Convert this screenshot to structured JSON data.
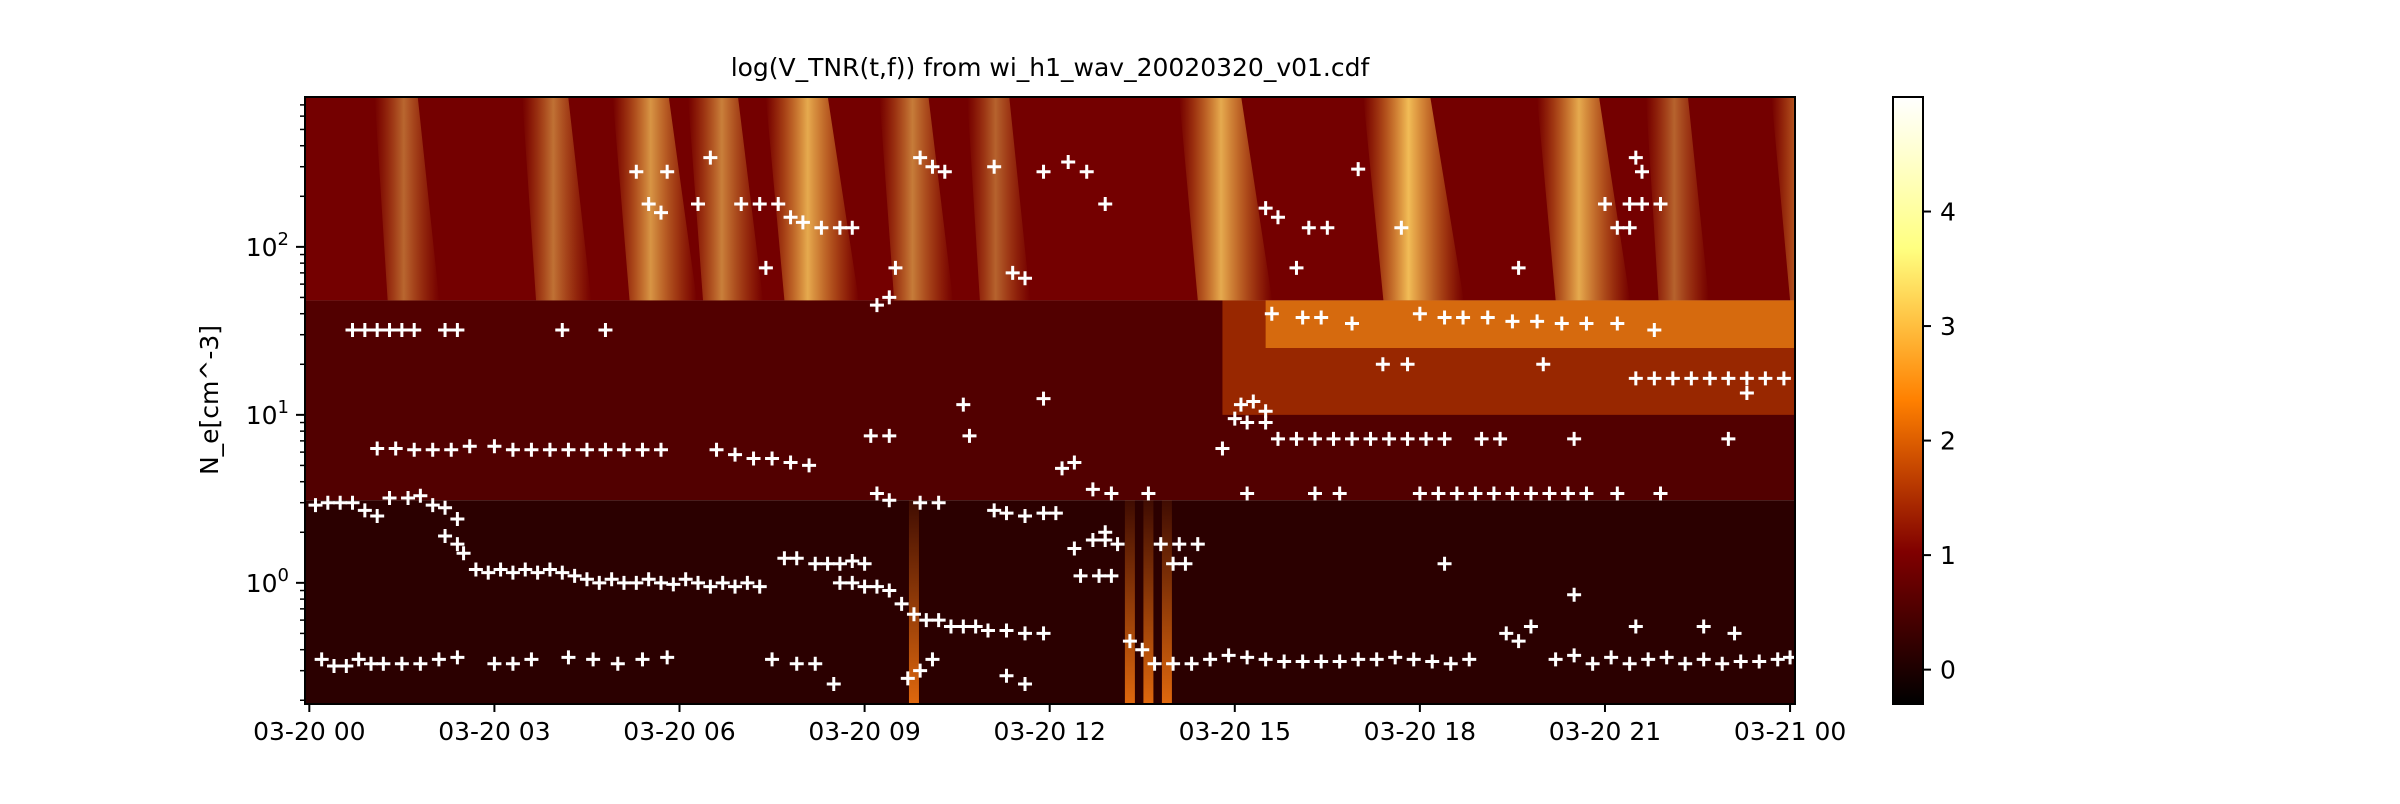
{
  "chart_data": {
    "type": "heatmap",
    "title": "log(V_TNR(t,f)) from wi_h1_wav_20020320_v01.cdf",
    "xlabel": "",
    "ylabel": "N_e[cm^-3]",
    "x_tick_labels": [
      "03-20 00",
      "03-20 03",
      "03-20 06",
      "03-20 09",
      "03-20 12",
      "03-20 15",
      "03-20 18",
      "03-20 21",
      "03-21 00"
    ],
    "x_ticks_hours": [
      0,
      3,
      6,
      9,
      12,
      15,
      18,
      21,
      24
    ],
    "xlim_hours": [
      -0.07,
      24.08
    ],
    "y_scale": "log",
    "ylim": [
      0.19,
      780
    ],
    "y_major_ticks": [
      1,
      10,
      100
    ],
    "y_tick_labels": [
      {
        "base": "10",
        "exp": "0"
      },
      {
        "base": "10",
        "exp": "1"
      },
      {
        "base": "10",
        "exp": "2"
      }
    ],
    "colorbar": {
      "range": [
        -0.3,
        5.0
      ],
      "ticks": [
        0,
        1,
        2,
        3,
        4
      ],
      "tick_labels": [
        "0",
        "1",
        "2",
        "3",
        "4"
      ],
      "colormap": "afmhot",
      "colors": [
        "#000000",
        "#800000",
        "#ff8000",
        "#ffff80",
        "#ffffff"
      ]
    },
    "band_boundaries": [
      3.1,
      48
    ],
    "bursts": [
      {
        "t": 1.2,
        "i": 1.5
      },
      {
        "t": 3.6,
        "i": 1.8
      },
      {
        "t": 5.1,
        "i": 2.8
      },
      {
        "t": 6.3,
        "i": 2.2
      },
      {
        "t": 7.6,
        "i": 3.4
      },
      {
        "t": 9.4,
        "i": 2.1
      },
      {
        "t": 10.8,
        "i": 1.4
      },
      {
        "t": 14.3,
        "i": 3.4
      },
      {
        "t": 17.3,
        "i": 3.9
      },
      {
        "t": 20.1,
        "i": 3.4
      },
      {
        "t": 21.8,
        "i": 1.4
      },
      {
        "t": 23.9,
        "i": 3.4
      }
    ],
    "spikes": [
      9.8,
      13.3,
      13.6,
      13.9
    ],
    "series": [
      {
        "marker": "+",
        "color": "#ffffff",
        "points": [
          [
            0.1,
            2.9
          ],
          [
            0.3,
            3.0
          ],
          [
            0.5,
            3.0
          ],
          [
            0.7,
            3.0
          ],
          [
            0.9,
            2.7
          ],
          [
            1.1,
            2.5
          ],
          [
            1.3,
            3.2
          ],
          [
            1.6,
            3.2
          ],
          [
            1.8,
            3.3
          ],
          [
            2.0,
            2.9
          ],
          [
            2.2,
            2.8
          ],
          [
            2.4,
            2.4
          ],
          [
            2.2,
            1.9
          ],
          [
            2.4,
            1.7
          ],
          [
            2.5,
            1.5
          ],
          [
            2.7,
            1.2
          ],
          [
            2.9,
            1.15
          ],
          [
            3.1,
            1.2
          ],
          [
            3.3,
            1.15
          ],
          [
            3.5,
            1.2
          ],
          [
            3.7,
            1.15
          ],
          [
            3.9,
            1.2
          ],
          [
            4.1,
            1.15
          ],
          [
            4.3,
            1.1
          ],
          [
            4.5,
            1.05
          ],
          [
            4.7,
            1.0
          ],
          [
            4.9,
            1.05
          ],
          [
            5.1,
            1.0
          ],
          [
            5.3,
            1.0
          ],
          [
            5.5,
            1.05
          ],
          [
            5.7,
            1.0
          ],
          [
            5.9,
            0.98
          ],
          [
            6.1,
            1.05
          ],
          [
            6.3,
            1.0
          ],
          [
            6.5,
            0.95
          ],
          [
            6.7,
            1.0
          ],
          [
            6.9,
            0.95
          ],
          [
            7.1,
            1.0
          ],
          [
            7.3,
            0.95
          ],
          [
            7.7,
            1.4
          ],
          [
            7.9,
            1.4
          ],
          [
            8.2,
            1.3
          ],
          [
            8.4,
            1.3
          ],
          [
            8.6,
            1.3
          ],
          [
            8.8,
            1.35
          ],
          [
            9.0,
            1.3
          ],
          [
            8.6,
            1.0
          ],
          [
            8.8,
            1.0
          ],
          [
            9.0,
            0.95
          ],
          [
            9.2,
            0.95
          ],
          [
            9.4,
            0.9
          ],
          [
            9.6,
            0.75
          ],
          [
            9.8,
            0.65
          ],
          [
            10.0,
            0.6
          ],
          [
            10.2,
            0.6
          ],
          [
            10.4,
            0.55
          ],
          [
            10.6,
            0.55
          ],
          [
            10.8,
            0.55
          ],
          [
            11.0,
            0.52
          ],
          [
            11.3,
            0.52
          ],
          [
            11.6,
            0.5
          ],
          [
            11.9,
            0.5
          ],
          [
            0.2,
            0.35
          ],
          [
            0.4,
            0.32
          ],
          [
            0.6,
            0.32
          ],
          [
            0.8,
            0.35
          ],
          [
            1.0,
            0.33
          ],
          [
            1.2,
            0.33
          ],
          [
            1.5,
            0.33
          ],
          [
            1.8,
            0.33
          ],
          [
            2.1,
            0.35
          ],
          [
            2.4,
            0.36
          ],
          [
            3.0,
            0.33
          ],
          [
            3.3,
            0.33
          ],
          [
            3.6,
            0.35
          ],
          [
            4.2,
            0.36
          ],
          [
            4.6,
            0.35
          ],
          [
            5.0,
            0.33
          ],
          [
            5.4,
            0.35
          ],
          [
            5.8,
            0.36
          ],
          [
            7.5,
            0.35
          ],
          [
            7.9,
            0.33
          ],
          [
            8.2,
            0.33
          ],
          [
            8.5,
            0.25
          ],
          [
            9.7,
            0.27
          ],
          [
            9.9,
            0.3
          ],
          [
            10.1,
            0.35
          ],
          [
            11.3,
            0.28
          ],
          [
            11.6,
            0.25
          ],
          [
            1.1,
            6.3
          ],
          [
            1.4,
            6.3
          ],
          [
            1.7,
            6.2
          ],
          [
            2.0,
            6.2
          ],
          [
            2.3,
            6.2
          ],
          [
            2.6,
            6.5
          ],
          [
            3.0,
            6.5
          ],
          [
            3.3,
            6.2
          ],
          [
            3.6,
            6.2
          ],
          [
            3.9,
            6.2
          ],
          [
            4.2,
            6.2
          ],
          [
            4.5,
            6.2
          ],
          [
            4.8,
            6.2
          ],
          [
            5.1,
            6.2
          ],
          [
            5.4,
            6.2
          ],
          [
            5.7,
            6.2
          ],
          [
            6.6,
            6.2
          ],
          [
            6.9,
            5.8
          ],
          [
            7.2,
            5.5
          ],
          [
            7.5,
            5.5
          ],
          [
            7.8,
            5.2
          ],
          [
            8.1,
            5.0
          ],
          [
            0.7,
            32
          ],
          [
            0.9,
            32
          ],
          [
            1.1,
            32
          ],
          [
            1.3,
            32
          ],
          [
            1.5,
            32
          ],
          [
            1.7,
            32
          ],
          [
            2.2,
            32
          ],
          [
            2.4,
            32
          ],
          [
            4.1,
            32
          ],
          [
            4.8,
            32
          ],
          [
            5.3,
            280
          ],
          [
            5.8,
            280
          ],
          [
            5.5,
            180
          ],
          [
            5.7,
            160
          ],
          [
            6.3,
            180
          ],
          [
            6.5,
            340
          ],
          [
            7.0,
            180
          ],
          [
            7.3,
            180
          ],
          [
            7.6,
            180
          ],
          [
            7.8,
            150
          ],
          [
            8.0,
            140
          ],
          [
            8.3,
            130
          ],
          [
            8.6,
            130
          ],
          [
            8.8,
            130
          ],
          [
            7.4,
            75
          ],
          [
            9.9,
            340
          ],
          [
            10.1,
            300
          ],
          [
            10.3,
            280
          ],
          [
            11.1,
            300
          ],
          [
            11.9,
            280
          ],
          [
            12.3,
            320
          ],
          [
            12.6,
            280
          ],
          [
            12.9,
            180
          ],
          [
            11.4,
            70
          ],
          [
            11.6,
            65
          ],
          [
            9.5,
            75
          ],
          [
            9.2,
            45
          ],
          [
            9.4,
            50
          ],
          [
            12.2,
            4.8
          ],
          [
            12.4,
            5.2
          ],
          [
            12.7,
            3.6
          ],
          [
            13.0,
            3.4
          ],
          [
            13.6,
            3.4
          ],
          [
            12.4,
            1.6
          ],
          [
            12.7,
            1.8
          ],
          [
            12.9,
            1.8
          ],
          [
            13.1,
            1.7
          ],
          [
            12.9,
            2.0
          ],
          [
            12.5,
            1.1
          ],
          [
            12.8,
            1.1
          ],
          [
            13.0,
            1.1
          ],
          [
            9.1,
            7.5
          ],
          [
            9.4,
            7.5
          ],
          [
            10.6,
            11.5
          ],
          [
            10.7,
            7.5
          ],
          [
            11.9,
            12.5
          ],
          [
            11.1,
            2.7
          ],
          [
            11.3,
            2.6
          ],
          [
            11.6,
            2.5
          ],
          [
            11.9,
            2.6
          ],
          [
            12.1,
            2.6
          ],
          [
            9.2,
            3.4
          ],
          [
            9.4,
            3.1
          ],
          [
            9.9,
            3.0
          ],
          [
            10.2,
            3.0
          ],
          [
            13.3,
            0.45
          ],
          [
            13.5,
            0.4
          ],
          [
            13.7,
            0.33
          ],
          [
            14.0,
            0.33
          ],
          [
            14.3,
            0.33
          ],
          [
            14.6,
            0.35
          ],
          [
            14.9,
            0.37
          ],
          [
            15.2,
            0.36
          ],
          [
            15.5,
            0.35
          ],
          [
            15.8,
            0.34
          ],
          [
            16.1,
            0.34
          ],
          [
            16.4,
            0.34
          ],
          [
            16.7,
            0.34
          ],
          [
            17.0,
            0.35
          ],
          [
            17.3,
            0.35
          ],
          [
            17.6,
            0.36
          ],
          [
            17.9,
            0.35
          ],
          [
            18.2,
            0.34
          ],
          [
            18.5,
            0.33
          ],
          [
            18.8,
            0.35
          ],
          [
            19.4,
            0.5
          ],
          [
            19.6,
            0.45
          ],
          [
            19.8,
            0.55
          ],
          [
            20.2,
            0.35
          ],
          [
            20.5,
            0.37
          ],
          [
            20.8,
            0.33
          ],
          [
            21.1,
            0.36
          ],
          [
            21.4,
            0.33
          ],
          [
            21.7,
            0.35
          ],
          [
            22.0,
            0.36
          ],
          [
            22.3,
            0.33
          ],
          [
            22.6,
            0.35
          ],
          [
            22.9,
            0.33
          ],
          [
            23.2,
            0.34
          ],
          [
            23.5,
            0.34
          ],
          [
            23.8,
            0.35
          ],
          [
            24.0,
            0.36
          ],
          [
            21.5,
            0.55
          ],
          [
            22.6,
            0.55
          ],
          [
            23.1,
            0.5
          ],
          [
            20.5,
            0.85
          ],
          [
            13.8,
            1.7
          ],
          [
            14.1,
            1.7
          ],
          [
            14.4,
            1.7
          ],
          [
            14.0,
            1.3
          ],
          [
            14.2,
            1.3
          ],
          [
            14.8,
            6.3
          ],
          [
            15.0,
            9.5
          ],
          [
            15.1,
            11.5
          ],
          [
            15.3,
            12
          ],
          [
            15.5,
            10.5
          ],
          [
            15.2,
            9.0
          ],
          [
            15.5,
            9.0
          ],
          [
            15.7,
            7.2
          ],
          [
            16.0,
            7.2
          ],
          [
            16.3,
            7.2
          ],
          [
            16.6,
            7.2
          ],
          [
            16.9,
            7.2
          ],
          [
            17.2,
            7.2
          ],
          [
            17.5,
            7.2
          ],
          [
            17.8,
            7.2
          ],
          [
            18.1,
            7.2
          ],
          [
            18.4,
            7.2
          ],
          [
            19.0,
            7.2
          ],
          [
            19.3,
            7.2
          ],
          [
            20.5,
            7.2
          ],
          [
            15.2,
            3.4
          ],
          [
            16.3,
            3.4
          ],
          [
            16.7,
            3.4
          ],
          [
            18.0,
            3.4
          ],
          [
            18.3,
            3.4
          ],
          [
            18.6,
            3.4
          ],
          [
            18.9,
            3.4
          ],
          [
            19.2,
            3.4
          ],
          [
            19.5,
            3.4
          ],
          [
            19.8,
            3.4
          ],
          [
            20.1,
            3.4
          ],
          [
            20.4,
            3.4
          ],
          [
            20.7,
            3.4
          ],
          [
            21.2,
            3.4
          ],
          [
            21.9,
            3.4
          ],
          [
            18.4,
            1.3
          ],
          [
            23.0,
            7.2
          ],
          [
            23.3,
            13.5
          ],
          [
            15.5,
            170
          ],
          [
            15.7,
            150
          ],
          [
            16.0,
            75
          ],
          [
            16.2,
            130
          ],
          [
            16.5,
            130
          ],
          [
            17.0,
            290
          ],
          [
            17.7,
            130
          ],
          [
            15.6,
            40
          ],
          [
            16.1,
            38
          ],
          [
            16.4,
            38
          ],
          [
            16.9,
            35
          ],
          [
            17.4,
            20
          ],
          [
            17.8,
            20
          ],
          [
            18.0,
            40
          ],
          [
            18.4,
            38
          ],
          [
            18.7,
            38
          ],
          [
            19.1,
            38
          ],
          [
            19.5,
            36
          ],
          [
            19.9,
            36
          ],
          [
            20.3,
            35
          ],
          [
            20.7,
            35
          ],
          [
            21.2,
            35
          ],
          [
            21.8,
            32
          ],
          [
            20.0,
            20
          ],
          [
            19.6,
            75
          ],
          [
            21.0,
            180
          ],
          [
            21.2,
            130
          ],
          [
            21.4,
            130
          ],
          [
            21.5,
            340
          ],
          [
            21.6,
            280
          ],
          [
            21.4,
            180
          ],
          [
            21.6,
            180
          ],
          [
            21.9,
            180
          ],
          [
            21.5,
            16.5
          ],
          [
            21.8,
            16.5
          ],
          [
            22.1,
            16.5
          ],
          [
            22.4,
            16.5
          ],
          [
            22.7,
            16.5
          ],
          [
            23.0,
            16.5
          ],
          [
            23.3,
            16.5
          ],
          [
            23.6,
            16.5
          ],
          [
            23.9,
            16.5
          ]
        ]
      }
    ]
  }
}
